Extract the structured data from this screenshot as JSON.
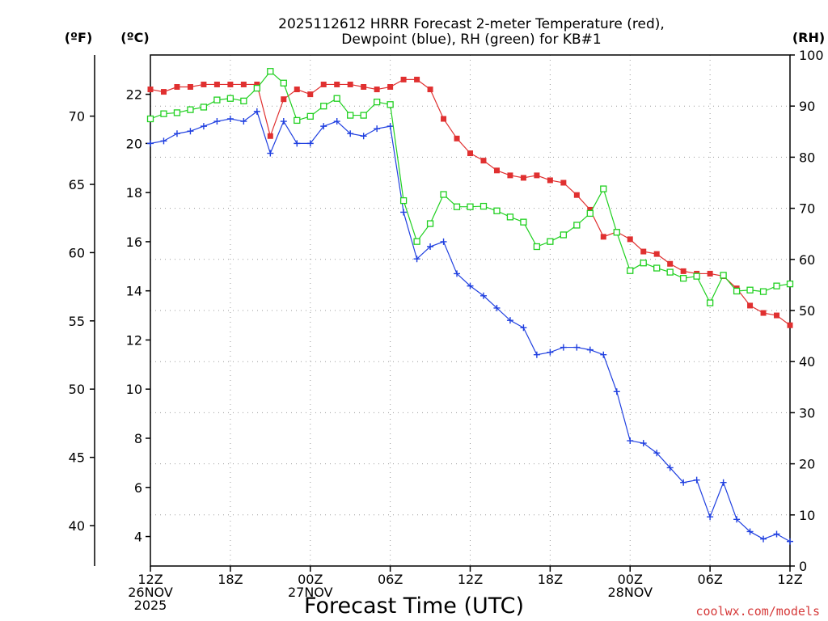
{
  "chart_data": {
    "type": "line",
    "title_lines": [
      "2025112612 HRRR Forecast 2-meter Temperature (red),",
      "Dewpoint (blue), RH (green) for KB#1"
    ],
    "xlabel": "Forecast Time (UTC)",
    "credit": "coolwx.com/models",
    "left_outer_unit": "(ºF)",
    "left_inner_unit": "(ºC)",
    "right_unit": "(RH)",
    "x_range": [
      0,
      48
    ],
    "x_ticks": [
      {
        "x": 0,
        "lines": [
          "12Z",
          "26NOV",
          "2025"
        ]
      },
      {
        "x": 6,
        "lines": [
          "18Z"
        ]
      },
      {
        "x": 12,
        "lines": [
          "00Z",
          "27NOV"
        ]
      },
      {
        "x": 18,
        "lines": [
          "06Z"
        ]
      },
      {
        "x": 24,
        "lines": [
          "12Z"
        ]
      },
      {
        "x": 30,
        "lines": [
          "18Z"
        ]
      },
      {
        "x": 36,
        "lines": [
          "00Z",
          "28NOV"
        ]
      },
      {
        "x": 42,
        "lines": [
          "06Z"
        ]
      },
      {
        "x": 48,
        "lines": [
          "12Z"
        ]
      }
    ],
    "celsius_axis": {
      "range": [
        2.8,
        23.6
      ],
      "ticks": [
        4,
        6,
        8,
        10,
        12,
        14,
        16,
        18,
        20,
        22
      ]
    },
    "fahrenheit_axis": {
      "ticks": [
        40,
        45,
        50,
        55,
        60,
        65,
        70
      ]
    },
    "rh_axis": {
      "range": [
        0,
        100
      ],
      "ticks": [
        0,
        10,
        20,
        30,
        40,
        50,
        60,
        70,
        80,
        90,
        100
      ]
    },
    "series": [
      {
        "name": "Temperature",
        "axis": "celsius",
        "color": "#e03030",
        "marker": "filled-square",
        "values": [
          22.2,
          22.1,
          22.3,
          22.3,
          22.4,
          22.4,
          22.4,
          22.4,
          22.4,
          20.3,
          21.8,
          22.2,
          22.0,
          22.4,
          22.4,
          22.4,
          22.3,
          22.2,
          22.3,
          22.6,
          22.6,
          22.2,
          21.0,
          20.2,
          19.6,
          19.3,
          18.9,
          18.7,
          18.6,
          18.7,
          18.5,
          18.4,
          17.9,
          17.3,
          16.2,
          16.4,
          16.1,
          15.6,
          15.5,
          15.1,
          14.8,
          14.7,
          14.7,
          14.6,
          14.1,
          13.4,
          13.1,
          13.0,
          12.6
        ]
      },
      {
        "name": "Dewpoint",
        "axis": "celsius",
        "color": "#2040e0",
        "marker": "plus",
        "values": [
          20.0,
          20.1,
          20.4,
          20.5,
          20.7,
          20.9,
          21.0,
          20.9,
          21.3,
          19.6,
          20.9,
          20.0,
          20.0,
          20.7,
          20.9,
          20.4,
          20.3,
          20.6,
          20.7,
          17.2,
          15.3,
          15.8,
          16.0,
          14.7,
          14.2,
          13.8,
          13.3,
          12.8,
          12.5,
          11.4,
          11.5,
          11.7,
          11.7,
          11.6,
          11.4,
          9.9,
          7.9,
          7.8,
          7.4,
          6.8,
          6.2,
          6.3,
          4.8,
          6.2,
          4.7,
          4.2,
          3.9,
          4.1,
          3.8
        ]
      },
      {
        "name": "RH",
        "axis": "rh",
        "color": "#20d020",
        "marker": "open-square",
        "values": [
          87.5,
          88.5,
          88.7,
          89.3,
          89.8,
          91.2,
          91.5,
          91.0,
          93.5,
          96.8,
          94.5,
          87.2,
          88.0,
          90.0,
          91.5,
          88.2,
          88.2,
          90.8,
          90.3,
          71.5,
          63.5,
          67.0,
          72.7,
          70.3,
          70.3,
          70.4,
          69.5,
          68.3,
          67.3,
          62.5,
          63.5,
          64.8,
          66.7,
          69.0,
          73.8,
          65.3,
          57.8,
          59.3,
          58.3,
          57.5,
          56.3,
          56.7,
          51.5,
          56.9,
          53.8,
          54.0,
          53.7,
          54.8,
          55.2
        ]
      }
    ]
  }
}
